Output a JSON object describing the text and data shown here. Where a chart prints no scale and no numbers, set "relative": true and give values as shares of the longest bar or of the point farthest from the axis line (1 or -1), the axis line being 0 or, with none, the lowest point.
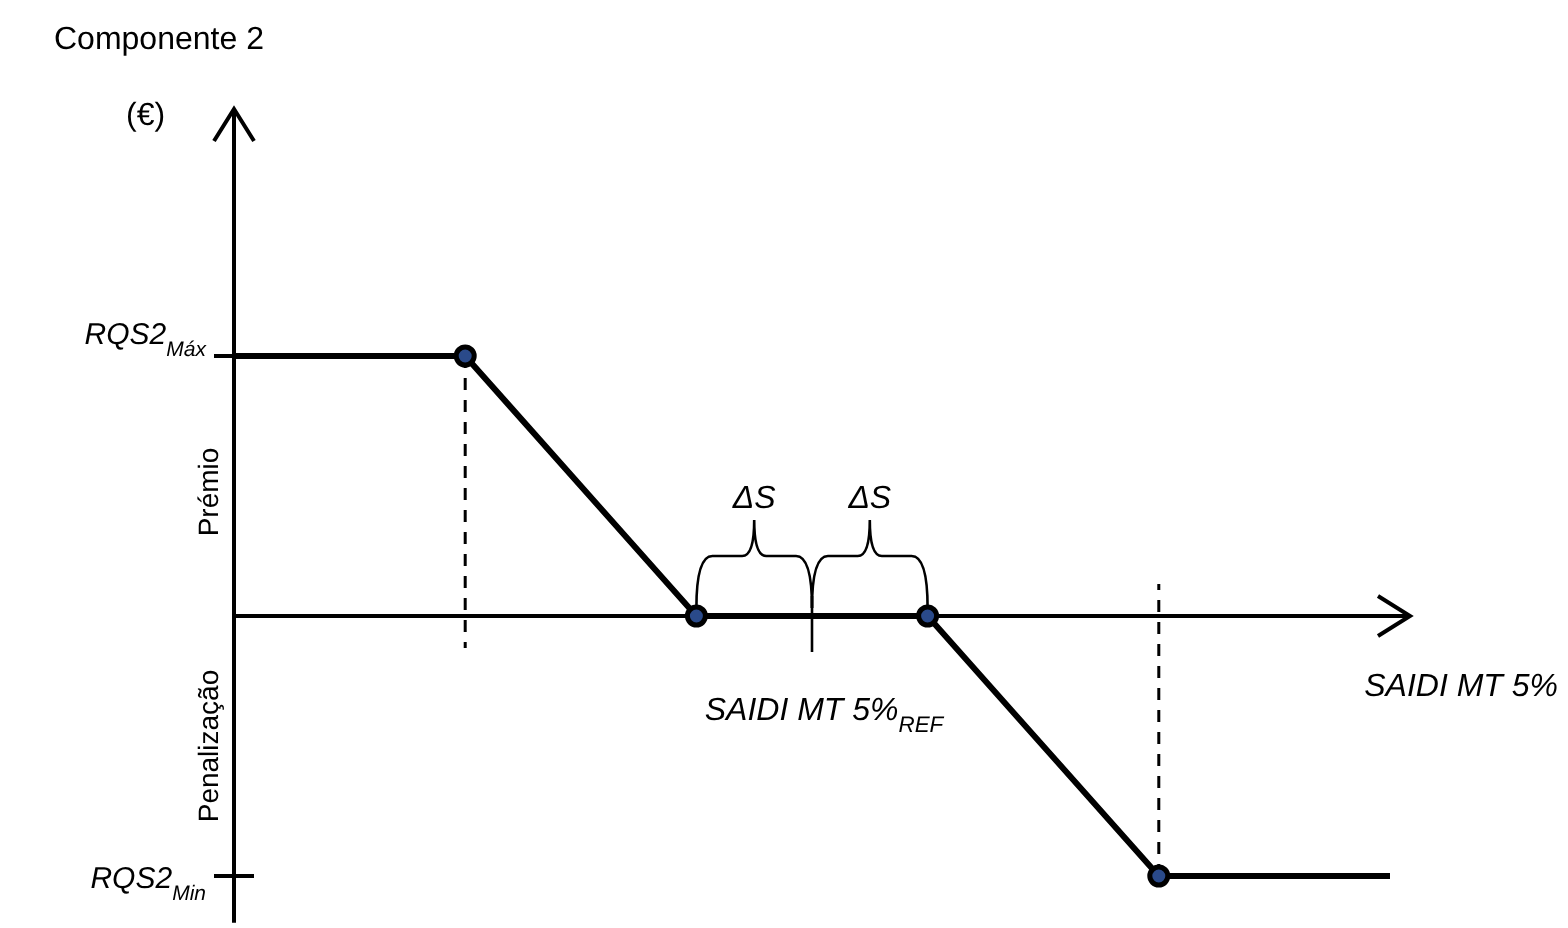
{
  "chart_data": {
    "type": "line",
    "relative": true,
    "xlabel": "SAIDI MT 5%",
    "categories": [
      null,
      null,
      null,
      null,
      null,
      null
    ],
    "marker": "circle",
    "series": [
      {
        "color": "#000000",
        "values": [
          1,
          1,
          0,
          0,
          -1,
          -1
        ]
      }
    ],
    "annotations": [
      "Componente 2",
      "(€)",
      "RQS2$_{Máx}$",
      "RQS2$_{Min}$",
      "Prémio",
      "Penalização",
      "ΔS",
      "ΔS",
      "SAIDI MT 5%$_{REF}$"
    ]
  }
}
